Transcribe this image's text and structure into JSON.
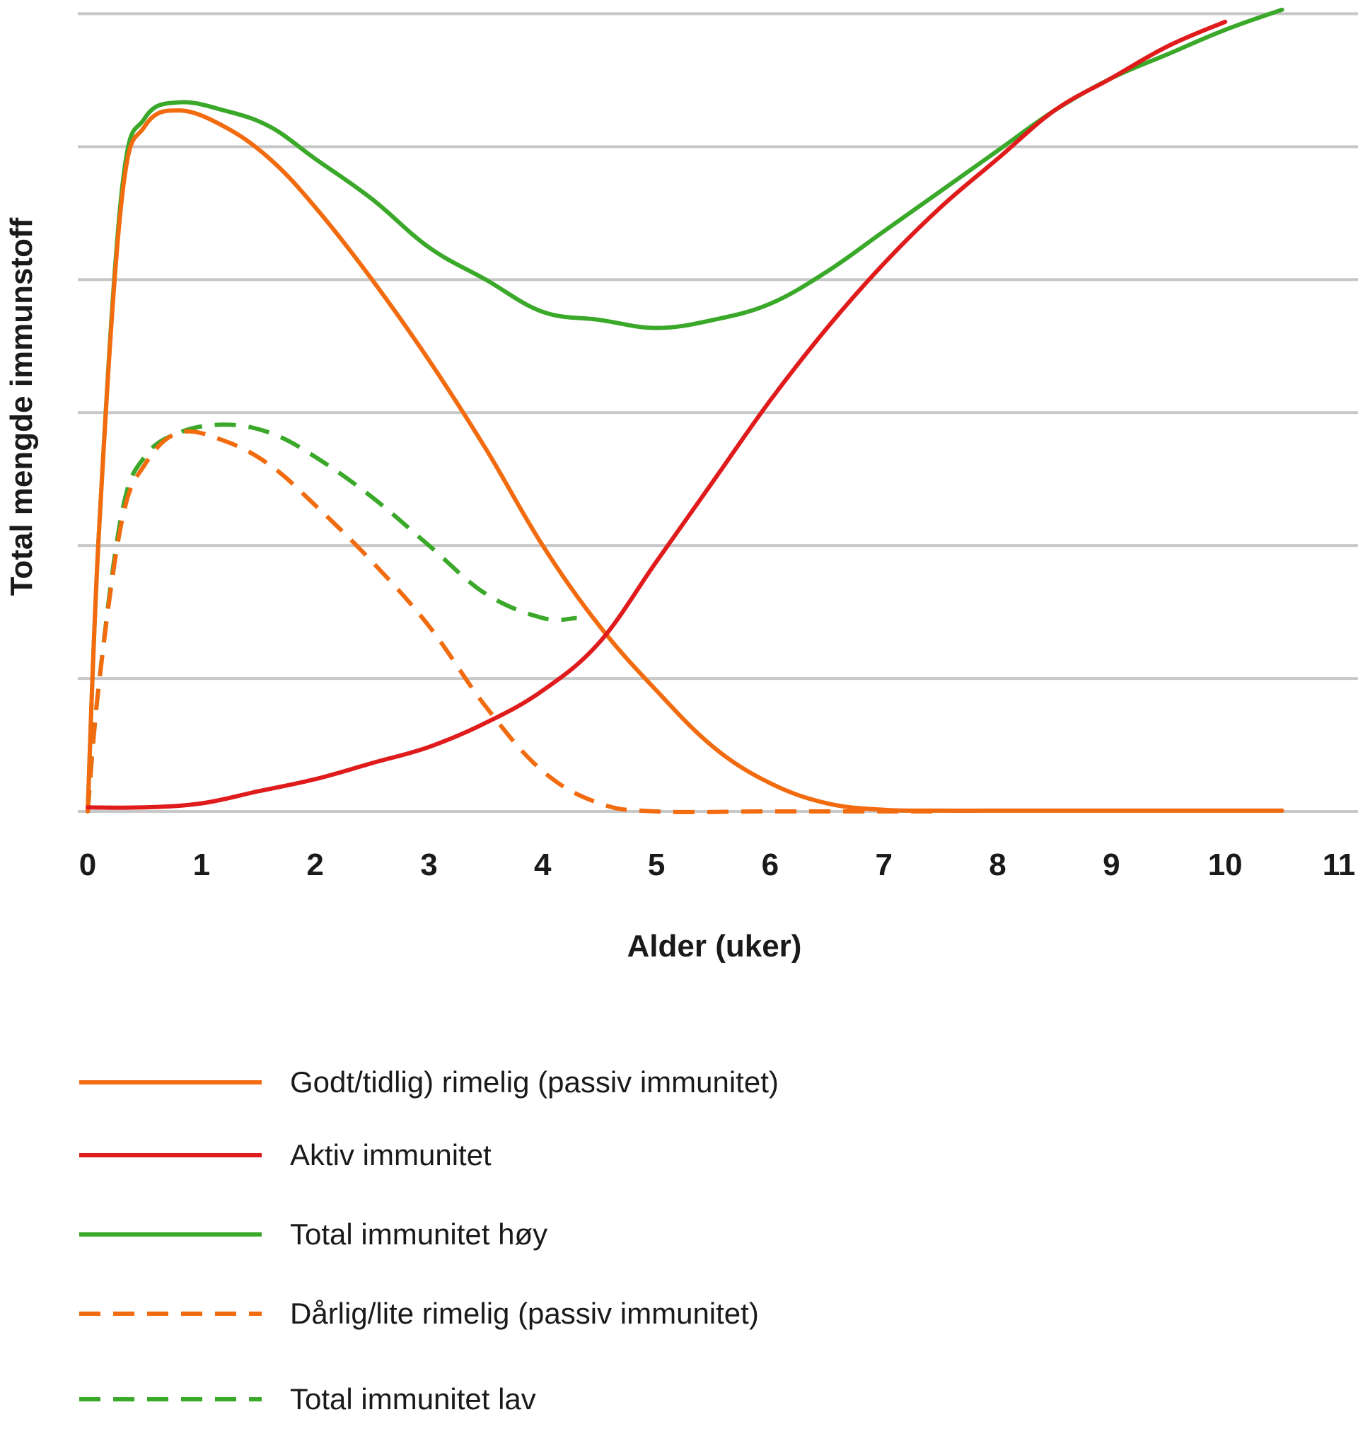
{
  "chart_data": {
    "type": "line",
    "title": "",
    "xlabel": "Alder (uker)",
    "ylabel": "Total mengde immunstoff",
    "xlim": [
      0,
      11
    ],
    "ylim": [
      0,
      100
    ],
    "x_ticks": [
      "0",
      "1",
      "2",
      "3",
      "4",
      "5",
      "6",
      "7",
      "8",
      "9",
      "10",
      "11"
    ],
    "y_grid_values": [
      0,
      16.5,
      33,
      49.5,
      66,
      82.5,
      99
    ],
    "grid": "horizontal",
    "legend_position": "bottom",
    "series": [
      {
        "name": "Godt/tidlig) rimelig (passiv immunitet)",
        "color": "#f26b0f",
        "dash": false,
        "x": [
          0,
          0.1,
          0.3,
          0.5,
          0.8,
          1.2,
          1.6,
          2.0,
          2.5,
          3.0,
          3.5,
          4.0,
          4.5,
          5.0,
          5.5,
          6.0,
          6.5,
          7.0,
          7.5,
          8.0,
          9.0,
          10.0,
          10.5
        ],
        "y": [
          0,
          35,
          76,
          85,
          87,
          85,
          81,
          75,
          66,
          56,
          45,
          33,
          23,
          15,
          8,
          3.5,
          1,
          0.2,
          0.1,
          0.1,
          0.1,
          0.1,
          0.1
        ]
      },
      {
        "name": "Aktiv immunitet",
        "color": "#e01b1b",
        "dash": false,
        "x": [
          0,
          0.5,
          1.0,
          1.5,
          2.0,
          2.5,
          3.0,
          3.5,
          4.0,
          4.5,
          5.0,
          5.5,
          6.0,
          6.5,
          7.0,
          7.5,
          8.0,
          8.5,
          9.0,
          9.5,
          10.0
        ],
        "y": [
          0.5,
          0.5,
          1,
          2.5,
          4,
          6,
          8,
          11,
          15,
          21,
          31,
          41,
          51,
          60,
          68,
          75,
          81,
          87,
          91,
          95,
          98
        ]
      },
      {
        "name": "Total immunitet høy",
        "color": "#3aa829",
        "dash": false,
        "x": [
          0,
          0.1,
          0.3,
          0.5,
          0.8,
          1.2,
          1.6,
          2.0,
          2.5,
          3.0,
          3.5,
          4.0,
          4.5,
          5.0,
          5.5,
          6.0,
          6.5,
          7.0,
          7.5,
          8.0,
          8.5,
          9.0,
          9.5,
          10.0,
          10.5
        ],
        "y": [
          0,
          35,
          77,
          86,
          88,
          87,
          85,
          81,
          76,
          70,
          66,
          62,
          61,
          60,
          61,
          63,
          67,
          72,
          77,
          82,
          87,
          91,
          94,
          97,
          99.5
        ]
      },
      {
        "name": "Dårlig/lite rimelig (passiv immunitet)",
        "color": "#f26b0f",
        "dash": true,
        "x": [
          0,
          0.1,
          0.3,
          0.5,
          0.8,
          1.2,
          1.6,
          2.0,
          2.5,
          3.0,
          3.5,
          4.0,
          4.5,
          5.0,
          6.0,
          7.0,
          7.5
        ],
        "y": [
          0,
          16,
          36,
          43,
          47,
          46,
          43,
          38,
          31,
          23,
          13,
          5,
          1,
          0,
          0,
          0,
          0
        ]
      },
      {
        "name": "Total immunitet lav",
        "color": "#3aa829",
        "dash": true,
        "x": [
          0,
          0.1,
          0.3,
          0.5,
          0.8,
          1.2,
          1.6,
          2.0,
          2.5,
          3.0,
          3.5,
          4.0,
          4.3
        ],
        "y": [
          0,
          16,
          37,
          44,
          47,
          48,
          47,
          44,
          39,
          33,
          27,
          24,
          24
        ]
      }
    ]
  },
  "legend": {
    "items": [
      {
        "label": "Godt/tidlig) rimelig (passiv immunitet)",
        "color": "#f26b0f",
        "dash": false
      },
      {
        "label": "Aktiv immunitet",
        "color": "#e01b1b",
        "dash": false
      },
      {
        "label": "Total immunitet høy",
        "color": "#3aa829",
        "dash": false
      },
      {
        "label": "Dårlig/lite rimelig (passiv immunitet)",
        "color": "#f26b0f",
        "dash": true
      },
      {
        "label": "Total immunitet lav",
        "color": "#3aa829",
        "dash": true
      }
    ]
  },
  "colors": {
    "grid": "#c8c8c8",
    "text": "#1a1a1a"
  }
}
